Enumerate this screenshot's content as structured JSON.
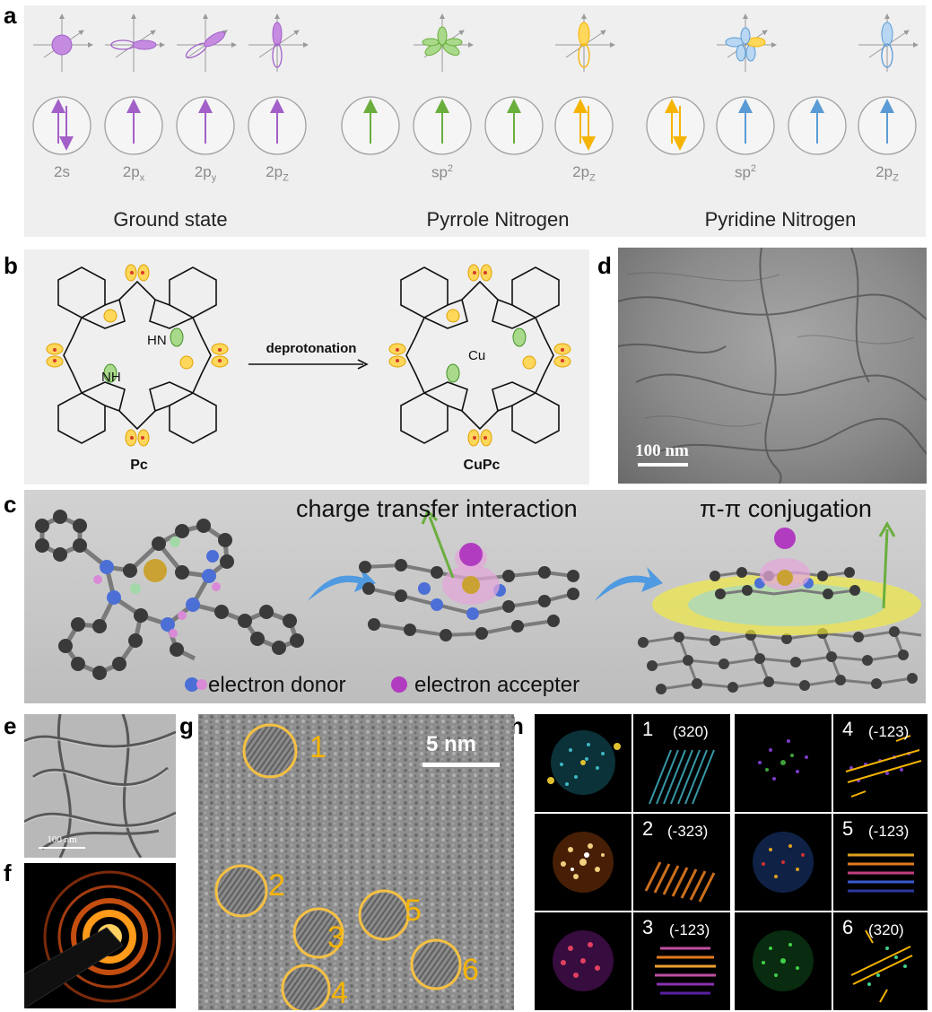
{
  "panel_labels": {
    "a": "a",
    "b": "b",
    "c": "c",
    "d": "d",
    "e": "e",
    "f": "f",
    "g": "g",
    "h": "h"
  },
  "panel_a": {
    "orbitals": [
      "2s",
      "2px",
      "2py",
      "2pZ",
      "sp2",
      "2pZ",
      "sp2",
      "2pZ"
    ],
    "orbital_labels": [
      {
        "main": "2s",
        "sub": ""
      },
      {
        "main": "2p",
        "sub": "x"
      },
      {
        "main": "2p",
        "sub": "y"
      },
      {
        "main": "2p",
        "sub": "Z"
      },
      {
        "main": "sp",
        "sup": "2"
      },
      {
        "main": "2p",
        "sub": "Z"
      },
      {
        "main": "sp",
        "sup": "2"
      },
      {
        "main": "2p",
        "sub": "Z"
      }
    ],
    "groups": [
      "Ground state",
      "Pyrrole Nitrogen",
      "Pyridine Nitrogen"
    ],
    "colors": {
      "purple": "#a260c8",
      "green": "#6aae3e",
      "yellow": "#f5b400",
      "blue": "#5b9bd5"
    }
  },
  "panel_b": {
    "arrow_label": "deprotonation",
    "left_name": "Pc",
    "right_name": "CuPc",
    "metal": "Cu",
    "nh_top": "HN",
    "nh_bottom": "NH"
  },
  "panel_c": {
    "title_left": "charge transfer interaction",
    "title_right": "π-π conjugation",
    "legend_donor": "electron donor",
    "legend_accepter": "electron accepter"
  },
  "panel_d": {
    "scale": "100 nm"
  },
  "panel_e": {
    "scale": "100 nm"
  },
  "panel_g": {
    "scale": "5 nm",
    "circles": [
      "1",
      "2",
      "3",
      "4",
      "5",
      "6"
    ]
  },
  "panel_h": {
    "cells": [
      {
        "num": "1",
        "index": "(320)"
      },
      {
        "num": "2",
        "index": "(-323)"
      },
      {
        "num": "3",
        "index": "(-123)"
      },
      {
        "num": "4",
        "index": "(-123)"
      },
      {
        "num": "5",
        "index": "(-123)"
      },
      {
        "num": "6",
        "index": "(320)"
      }
    ]
  }
}
